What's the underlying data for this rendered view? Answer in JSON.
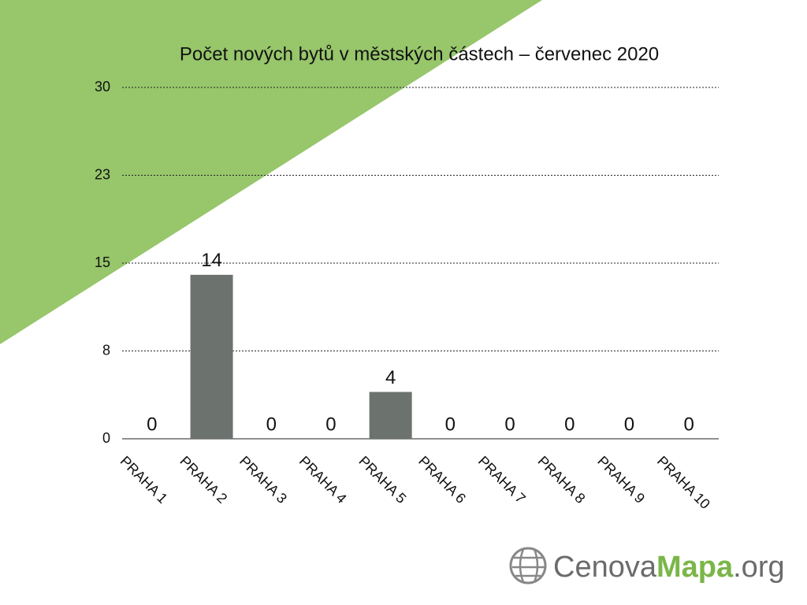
{
  "chart_data": {
    "type": "bar",
    "title": "Počet nových bytů v městských částech – červenec 2020",
    "categories": [
      "PRAHA 1",
      "PRAHA 2",
      "PRAHA 3",
      "PRAHA 4",
      "PRAHA 5",
      "PRAHA 6",
      "PRAHA 7",
      "PRAHA 8",
      "PRAHA 9",
      "PRAHA 10"
    ],
    "values": [
      0,
      14,
      0,
      0,
      4,
      0,
      0,
      0,
      0,
      0
    ],
    "color": "#6c736f",
    "ylim": [
      0,
      30
    ],
    "yticks": [
      0,
      {
        "value": 7.5,
        "label": "8"
      },
      15,
      {
        "value": 22.5,
        "label": "23"
      },
      30
    ],
    "grid": true
  },
  "logo": [
    "Cenova",
    "Mapa",
    ".org"
  ]
}
